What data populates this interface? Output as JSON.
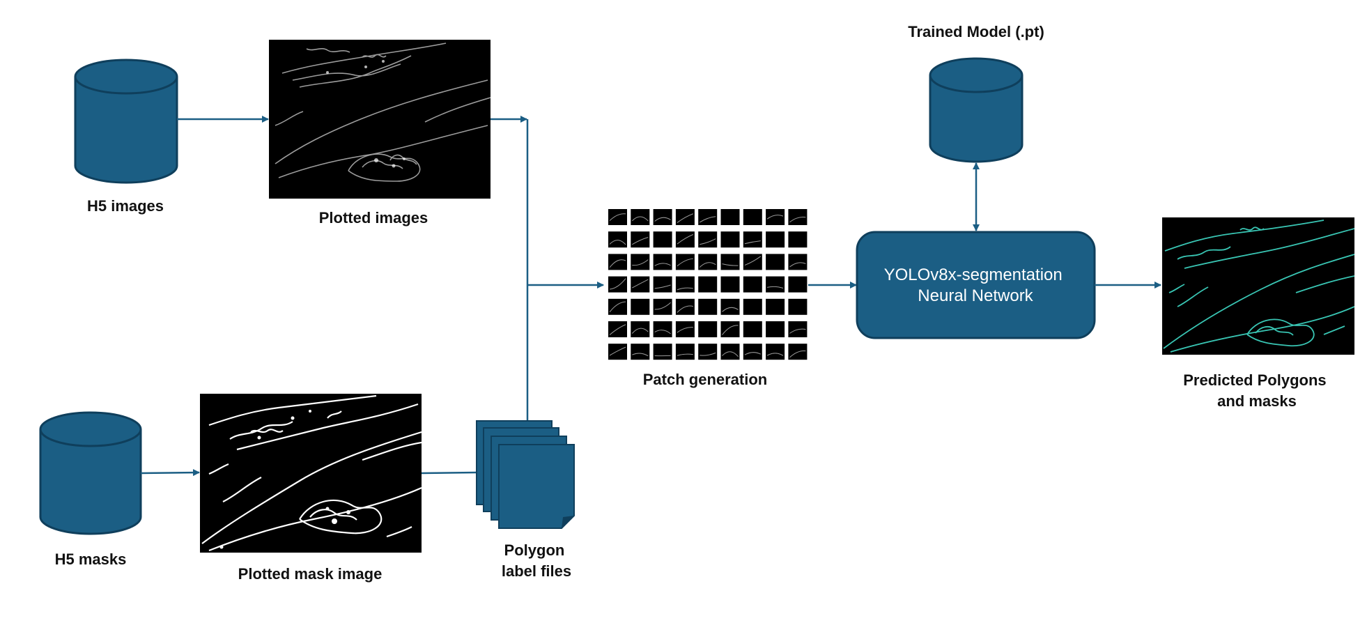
{
  "colors": {
    "primary": "#1b5e84",
    "primary_stroke": "#0f3f5c",
    "arrow": "#1b5e84",
    "image_bg": "#000000",
    "prediction": "#39c6b4",
    "text": "#111111"
  },
  "nodes": {
    "h5_images": {
      "label": "H5 images",
      "icon": "database-cylinder-icon"
    },
    "plotted_images": {
      "label": "Plotted images",
      "icon": "grayscale-microscopy-image"
    },
    "h5_masks": {
      "label": "H5 masks",
      "icon": "database-cylinder-icon"
    },
    "plotted_mask": {
      "label": "Plotted mask image",
      "icon": "binary-mask-image"
    },
    "polygon_files": {
      "label_lines": [
        "Polygon",
        "label files"
      ],
      "icon": "document-stack-icon"
    },
    "patches": {
      "label": "Patch generation",
      "icon": "patch-grid"
    },
    "trained_model": {
      "label": "Trained Model (.pt)",
      "icon": "database-cylinder-icon"
    },
    "neural_network": {
      "label_lines": [
        "YOLOv8x-segmentation",
        "Neural Network"
      ]
    },
    "predicted": {
      "label_lines": [
        "Predicted Polygons",
        "and masks"
      ],
      "icon": "segmentation-overlay-image"
    }
  }
}
